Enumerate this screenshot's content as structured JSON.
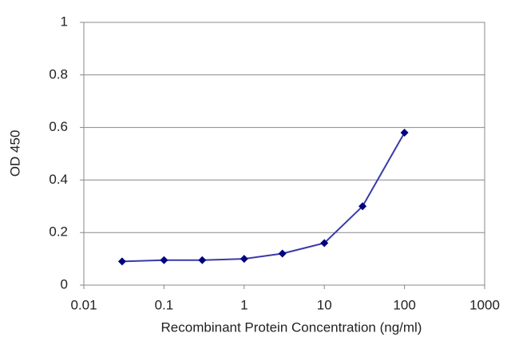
{
  "chart_data": {
    "type": "line",
    "x_label": "Recombinant Protein Concentration (ng/ml)",
    "y_label": "OD 450",
    "x_scale": "log",
    "x": [
      0.03,
      0.1,
      0.3,
      1,
      3,
      10,
      30,
      100
    ],
    "series": [
      {
        "color": "#000080",
        "values": [
          0.09,
          0.095,
          0.095,
          0.1,
          0.12,
          0.16,
          0.3,
          0.58
        ]
      }
    ],
    "xlim": [
      0.01,
      1000
    ],
    "xticks": [
      0.01,
      0.1,
      1,
      10,
      100,
      1000
    ],
    "ylim": [
      0,
      1
    ],
    "yticks": [
      0,
      0.2,
      0.4,
      0.6,
      0.8,
      1
    ],
    "grid": true
  }
}
